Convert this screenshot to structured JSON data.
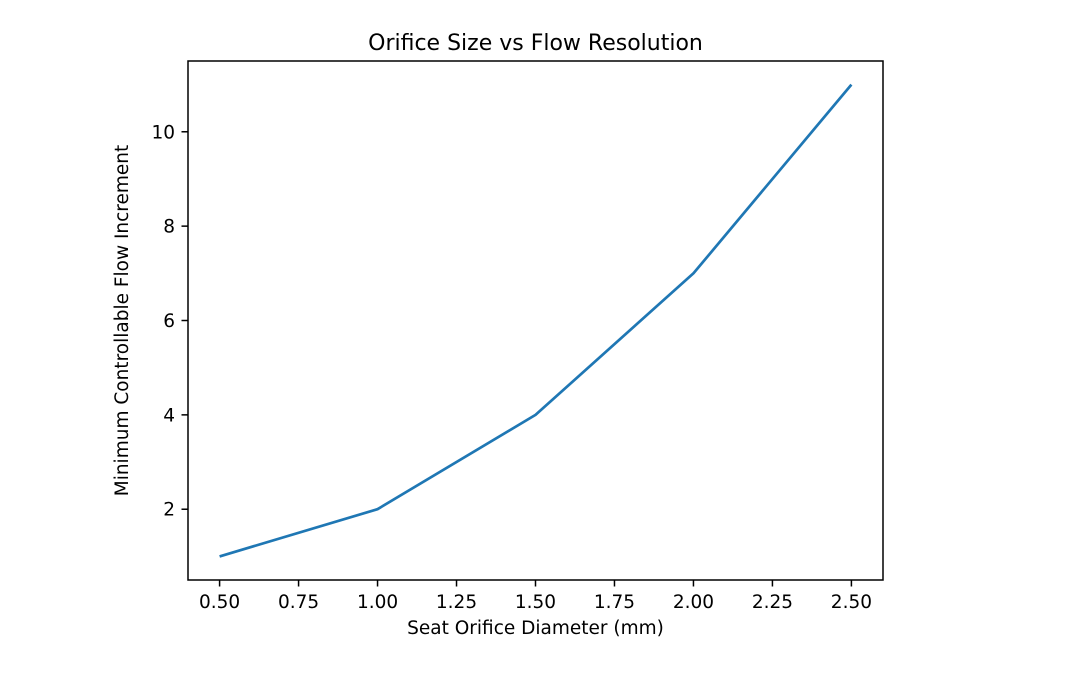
{
  "chart_data": {
    "type": "line",
    "title": "Orifice Size vs Flow Resolution",
    "xlabel": "Seat Orifice Diameter (mm)",
    "ylabel": "Minimum Controllable Flow Increment",
    "x": [
      0.5,
      1.0,
      1.5,
      2.0,
      2.5
    ],
    "y": [
      1,
      2,
      4,
      7,
      11
    ],
    "xlim": [
      0.4,
      2.6
    ],
    "ylim": [
      0.5,
      11.5
    ],
    "xticks": {
      "values": [
        0.5,
        0.75,
        1.0,
        1.25,
        1.5,
        1.75,
        2.0,
        2.25,
        2.5
      ],
      "labels": [
        "0.50",
        "0.75",
        "1.00",
        "1.25",
        "1.50",
        "1.75",
        "2.00",
        "2.25",
        "2.50"
      ]
    },
    "yticks": {
      "values": [
        2,
        4,
        6,
        8,
        10
      ],
      "labels": [
        "2",
        "4",
        "6",
        "8",
        "10"
      ]
    },
    "line_color": "#1f77b4",
    "background_color": "#ffffff",
    "grid": false,
    "legend": "none",
    "markers": "none"
  }
}
